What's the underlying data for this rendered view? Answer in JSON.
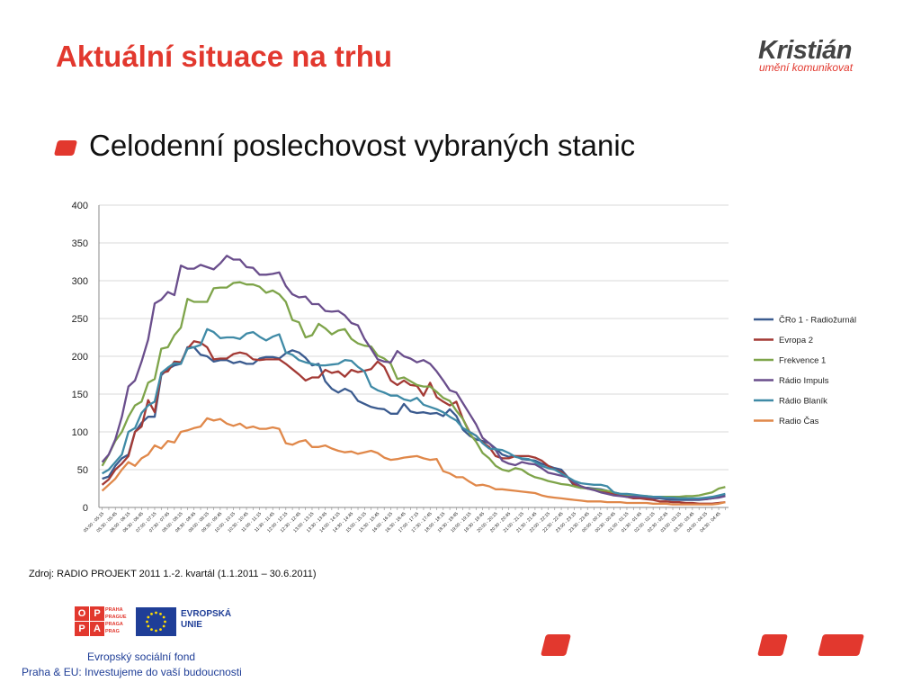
{
  "slide": {
    "title": "Aktuální situace na trhu",
    "bullet": "Celodenní poslechovost vybraných stanic",
    "source": "Zdroj: RADIO PROJEKT  2011 1.-2. kvartál (1.1.2011 – 30.6.2011)"
  },
  "logo": {
    "name": "Kristián",
    "tagline": "umění komunikovat"
  },
  "footer": {
    "opp_letters": [
      "O",
      "P",
      "P",
      "A"
    ],
    "opp_side": [
      "PRAHA",
      "PRAGUE",
      "PRAGA",
      "PRAG"
    ],
    "eu_label": "EVROPSKÁ\nUNIE",
    "esf_line1": "Evropský sociální fond",
    "esf_line2": "Praha & EU: Investujeme do vaší budoucnosti"
  },
  "colors": {
    "accent": "#e2382e",
    "eu_blue": "#1f3e97"
  },
  "chart_data": {
    "type": "line",
    "ylim": [
      0,
      400
    ],
    "yticks": [
      0,
      50,
      100,
      150,
      200,
      250,
      300,
      350,
      400
    ],
    "grid": true,
    "legend_position": "right",
    "categories": [
      "05:00 - 05:15",
      "05:15 - 05:30",
      "05:30 - 05:45",
      "05:45 - 06:00",
      "06:00 - 06:15",
      "06:15 - 06:30",
      "06:30 - 06:45",
      "06:45 - 07:00",
      "07:00 - 07:15",
      "07:15 - 07:30",
      "07:30 - 07:45",
      "07:45 - 08:00",
      "08:00 - 08:15",
      "08:15 - 08:30",
      "08:30 - 08:45",
      "08:45 - 09:00",
      "09:00 - 09:15",
      "09:15 - 09:30",
      "09:30 - 09:45",
      "09:45 - 10:00",
      "10:00 - 10:15",
      "10:15 - 10:30",
      "10:30 - 10:45",
      "10:45 - 11:00",
      "11:00 - 11:15",
      "11:15 - 11:30",
      "11:30 - 11:45",
      "11:45 - 12:00",
      "12:00 - 12:15",
      "12:15 - 12:30",
      "12:30 - 12:45",
      "12:45 - 13:00",
      "13:00 - 13:15",
      "13:15 - 13:30",
      "13:30 - 13:45",
      "13:45 - 14:00",
      "14:00 - 14:15",
      "14:15 - 14:30",
      "14:30 - 14:45",
      "14:45 - 15:00",
      "15:00 - 15:15",
      "15:15 - 15:30",
      "15:30 - 15:45",
      "15:45 - 16:00",
      "16:00 - 16:15",
      "16:15 - 16:30",
      "16:30 - 16:45",
      "16:45 - 17:00",
      "17:00 - 17:15",
      "17:15 - 17:30",
      "17:30 - 17:45",
      "17:45 - 18:00",
      "18:00 - 18:15",
      "18:15 - 18:30",
      "18:30 - 18:45",
      "18:45 - 19:00",
      "19:00 - 19:15",
      "19:15 - 19:30",
      "19:30 - 19:45",
      "19:45 - 20:00",
      "20:00 - 20:15",
      "20:15 - 20:30",
      "20:30 - 20:45",
      "20:45 - 21:00",
      "21:00 - 21:15",
      "21:15 - 21:30",
      "21:30 - 21:45",
      "21:45 - 22:00",
      "22:00 - 22:15",
      "22:15 - 22:30",
      "22:30 - 22:45",
      "22:45 - 23:00",
      "23:00 - 23:15",
      "23:15 - 23:30",
      "23:30 - 23:45",
      "23:45 - 00:00",
      "00:00 - 00:15",
      "00:15 - 00:30",
      "00:30 - 00:45",
      "00:45 - 01:00",
      "01:00 - 01:15",
      "01:15 - 01:30",
      "01:30 - 01:45",
      "01:45 - 02:00",
      "02:00 - 02:15",
      "02:15 - 02:30",
      "02:30 - 02:45",
      "02:45 - 03:00",
      "03:00 - 03:15",
      "03:15 - 03:30",
      "03:30 - 03:45",
      "03:45 - 04:00",
      "04:00 - 04:15",
      "04:15 - 04:30",
      "04:30 - 04:45",
      "04:45 - 05:00"
    ],
    "series": [
      {
        "name": "ČRo 1 - Radiožurnál",
        "color": "#3b5b8f",
        "values": [
          38,
          41,
          55,
          65,
          70,
          100,
          112,
          120,
          120,
          175,
          183,
          188,
          190,
          212,
          212,
          202,
          200,
          193,
          195,
          195,
          191,
          193,
          190,
          190,
          197,
          199,
          199,
          197,
          204,
          208,
          205,
          198,
          188,
          190,
          167,
          157,
          152,
          157,
          153,
          141,
          137,
          133,
          131,
          130,
          124,
          124,
          137,
          127,
          125,
          126,
          124,
          125,
          121,
          130,
          121,
          103,
          95,
          90,
          88,
          85,
          78,
          70,
          67,
          68,
          64,
          63,
          62,
          58,
          55,
          52,
          50,
          40,
          28,
          26,
          26,
          25,
          24,
          22,
          18,
          17,
          16,
          15,
          14,
          13,
          12,
          12,
          11,
          10,
          10,
          10,
          10,
          10,
          11,
          12,
          14,
          16
        ]
      },
      {
        "name": "Evropa 2",
        "color": "#a33a35",
        "values": [
          30,
          37,
          50,
          58,
          68,
          100,
          107,
          142,
          126,
          178,
          180,
          193,
          192,
          210,
          220,
          218,
          212,
          196,
          197,
          197,
          203,
          205,
          203,
          196,
          195,
          196,
          196,
          196,
          190,
          183,
          176,
          168,
          172,
          172,
          182,
          178,
          180,
          173,
          182,
          179,
          181,
          183,
          193,
          186,
          168,
          162,
          168,
          162,
          161,
          148,
          165,
          146,
          140,
          135,
          140,
          117,
          100,
          95,
          86,
          80,
          68,
          65,
          65,
          68,
          68,
          68,
          66,
          62,
          55,
          50,
          47,
          40,
          30,
          28,
          25,
          24,
          22,
          20,
          18,
          16,
          14,
          12,
          12,
          11,
          10,
          8,
          8,
          7,
          7,
          6,
          6,
          5,
          5,
          5,
          6,
          7
        ]
      },
      {
        "name": "Frekvence 1",
        "color": "#7ea44a",
        "values": [
          55,
          70,
          88,
          100,
          120,
          135,
          140,
          165,
          170,
          210,
          212,
          228,
          238,
          276,
          272,
          272,
          272,
          290,
          291,
          291,
          297,
          298,
          295,
          295,
          292,
          284,
          287,
          282,
          272,
          248,
          245,
          225,
          228,
          243,
          237,
          229,
          234,
          236,
          223,
          217,
          214,
          213,
          201,
          197,
          190,
          170,
          172,
          167,
          162,
          160,
          160,
          153,
          145,
          141,
          128,
          117,
          98,
          87,
          72,
          65,
          55,
          50,
          48,
          52,
          50,
          44,
          40,
          38,
          35,
          33,
          31,
          30,
          28,
          26,
          25,
          24,
          23,
          22,
          20,
          18,
          17,
          16,
          15,
          15,
          14,
          14,
          14,
          14,
          14,
          15,
          15,
          16,
          18,
          20,
          25,
          27
        ]
      },
      {
        "name": "Rádio Impuls",
        "color": "#6a4e8c",
        "values": [
          60,
          70,
          90,
          120,
          160,
          168,
          193,
          222,
          270,
          275,
          285,
          281,
          320,
          316,
          316,
          321,
          318,
          315,
          323,
          333,
          328,
          328,
          318,
          317,
          308,
          308,
          309,
          311,
          293,
          282,
          278,
          279,
          269,
          269,
          260,
          259,
          260,
          254,
          244,
          241,
          223,
          210,
          196,
          193,
          192,
          207,
          200,
          197,
          192,
          195,
          190,
          180,
          168,
          155,
          152,
          138,
          124,
          110,
          92,
          85,
          76,
          62,
          58,
          56,
          60,
          58,
          57,
          52,
          46,
          44,
          42,
          40,
          33,
          28,
          25,
          23,
          20,
          18,
          16,
          15,
          14,
          14,
          14,
          14,
          13,
          13,
          13,
          12,
          12,
          12,
          11,
          11,
          11,
          12,
          13,
          15
        ]
      },
      {
        "name": "Rádio Blaník",
        "color": "#3f8aa6",
        "values": [
          45,
          50,
          60,
          70,
          100,
          105,
          125,
          135,
          140,
          178,
          185,
          191,
          190,
          210,
          212,
          215,
          236,
          232,
          224,
          225,
          225,
          223,
          230,
          232,
          226,
          221,
          226,
          229,
          205,
          202,
          195,
          192,
          190,
          188,
          188,
          189,
          190,
          195,
          194,
          186,
          180,
          160,
          155,
          152,
          148,
          148,
          143,
          141,
          145,
          136,
          133,
          130,
          126,
          120,
          115,
          105,
          100,
          95,
          85,
          78,
          77,
          76,
          72,
          67,
          65,
          64,
          60,
          55,
          52,
          50,
          45,
          40,
          35,
          32,
          31,
          30,
          30,
          28,
          20,
          18,
          18,
          17,
          16,
          15,
          14,
          14,
          13,
          13,
          12,
          12,
          12,
          12,
          13,
          14,
          16,
          18
        ]
      },
      {
        "name": "Radio Čas",
        "color": "#e0884a",
        "values": [
          22,
          30,
          38,
          50,
          60,
          55,
          65,
          70,
          82,
          78,
          88,
          86,
          100,
          102,
          105,
          107,
          118,
          115,
          117,
          111,
          108,
          111,
          105,
          107,
          104,
          104,
          106,
          104,
          85,
          83,
          87,
          89,
          80,
          80,
          82,
          78,
          75,
          73,
          74,
          71,
          73,
          75,
          72,
          66,
          63,
          64,
          66,
          67,
          68,
          65,
          63,
          64,
          48,
          45,
          40,
          40,
          34,
          29,
          30,
          28,
          24,
          24,
          23,
          22,
          21,
          20,
          19,
          16,
          14,
          13,
          12,
          11,
          10,
          9,
          8,
          8,
          8,
          7,
          7,
          7,
          6,
          6,
          6,
          6,
          5,
          5,
          5,
          4,
          4,
          4,
          4,
          4,
          4,
          4,
          5,
          7
        ]
      }
    ]
  }
}
